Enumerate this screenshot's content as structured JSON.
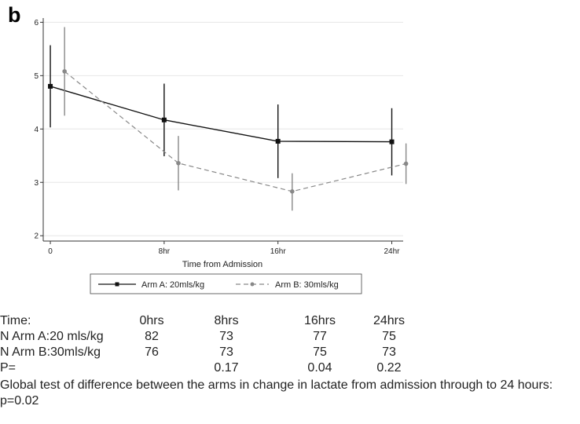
{
  "panel_label": "b",
  "chart_data": {
    "type": "line",
    "xlabel": "Time from Admission",
    "ylabel": "",
    "x_ticks": [
      {
        "value": 0,
        "label": "0"
      },
      {
        "value": 8,
        "label": "8hr"
      },
      {
        "value": 16,
        "label": "16hr"
      },
      {
        "value": 24,
        "label": "24hr"
      }
    ],
    "y_ticks": [
      2,
      3,
      4,
      5,
      6
    ],
    "xlim": [
      -0.5,
      24.8
    ],
    "ylim": [
      1.9,
      6.05
    ],
    "grid": "horizontal",
    "legend_position": "bottom",
    "series": [
      {
        "name": "Arm A: 20mls/kg",
        "color": "#111111",
        "dash": "solid",
        "marker": "square",
        "points": [
          {
            "x": 0,
            "y": 4.8,
            "lo": 4.03,
            "hi": 5.57
          },
          {
            "x": 8,
            "y": 4.17,
            "lo": 3.49,
            "hi": 4.85
          },
          {
            "x": 16,
            "y": 3.77,
            "lo": 3.08,
            "hi": 4.46
          },
          {
            "x": 24,
            "y": 3.76,
            "lo": 3.13,
            "hi": 4.39
          }
        ]
      },
      {
        "name": "Arm B: 30mls/kg",
        "color": "#888888",
        "dash": "dashed",
        "marker": "circle",
        "points": [
          {
            "x": 1,
            "y": 5.08,
            "lo": 4.25,
            "hi": 5.91
          },
          {
            "x": 9,
            "y": 3.36,
            "lo": 2.85,
            "hi": 3.87
          },
          {
            "x": 17,
            "y": 2.83,
            "lo": 2.47,
            "hi": 3.17
          },
          {
            "x": 25,
            "y": 3.35,
            "lo": 2.97,
            "hi": 3.73
          }
        ]
      }
    ]
  },
  "table": {
    "rows": [
      [
        "Time:",
        "0hrs",
        "8hrs",
        "16hrs",
        "24hrs"
      ],
      [
        "N Arm A:20 mls/kg",
        "82",
        "73",
        "77",
        "75"
      ],
      [
        "N Arm B:30mls/kg",
        "76",
        "73",
        "75",
        "73"
      ],
      [
        "P=",
        "",
        "0.17",
        "0.04",
        "0.22"
      ]
    ]
  },
  "footnote": "Global test of difference between the arms in change in lactate from admission through to 24 hours: p=0.02"
}
